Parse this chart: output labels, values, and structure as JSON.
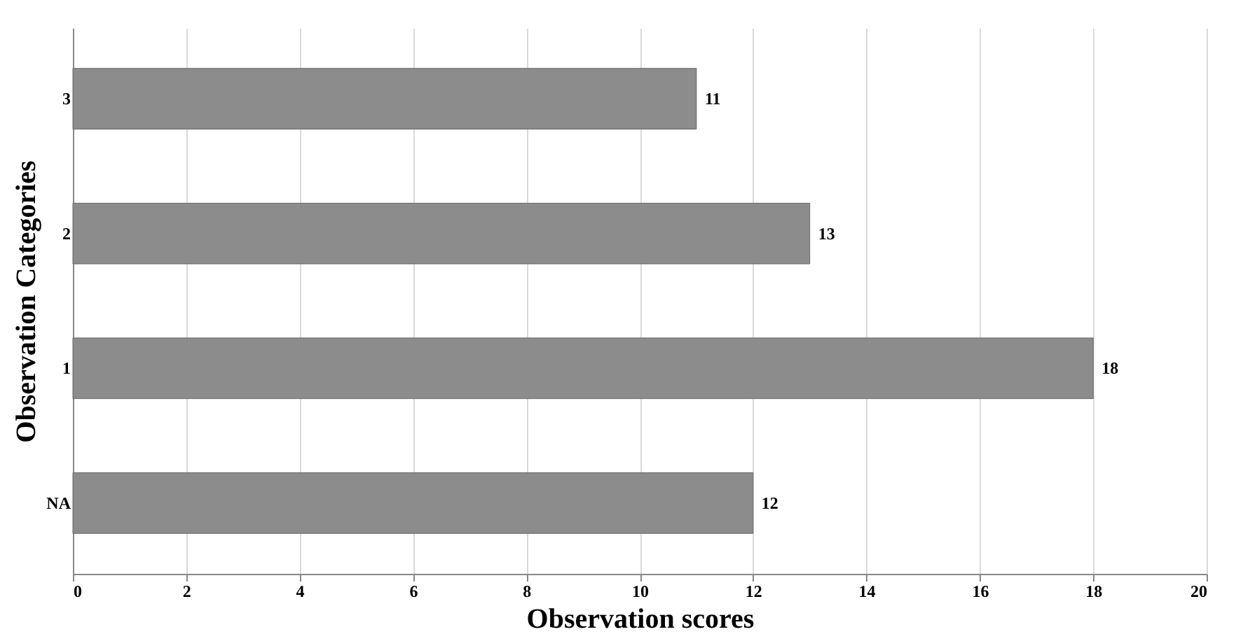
{
  "chart_data": {
    "type": "bar",
    "orientation": "horizontal",
    "xlabel": "Observation scores",
    "ylabel": "Observation Categories",
    "categories": [
      "3",
      "2",
      "1",
      "NA"
    ],
    "values": [
      11,
      13,
      18,
      12
    ],
    "color": "#8c8c8c",
    "xlim": [
      0,
      20
    ],
    "xticks": [
      0,
      2,
      4,
      6,
      8,
      10,
      12,
      14,
      16,
      18,
      20
    ],
    "grid": "x",
    "data_labels": true
  }
}
